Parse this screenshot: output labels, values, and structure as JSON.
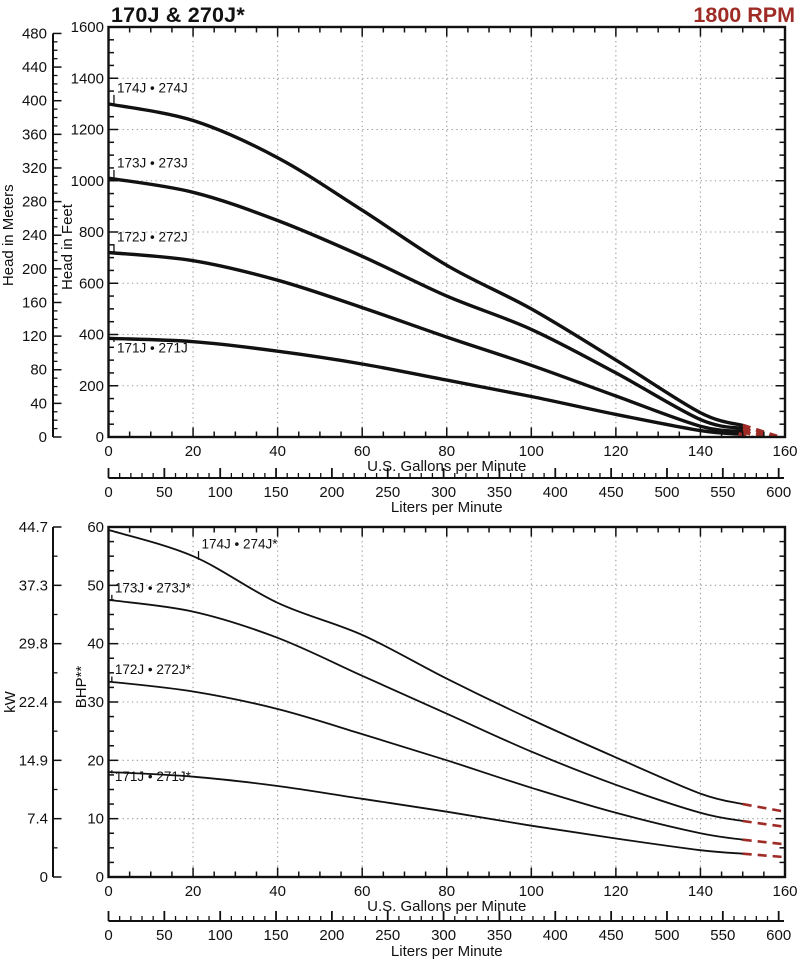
{
  "page": {
    "title": "170J & 270J*",
    "rpm": "1800 RPM"
  },
  "colors": {
    "accent_red": "#9E2B25",
    "curve": "#111111",
    "grid": "#999999",
    "text": "#111111"
  },
  "chart_data": [
    {
      "name": "head-capacity-chart",
      "type": "line",
      "x_axis": {
        "label": "U.S. Gallons per Minute",
        "min": 0,
        "max": 160,
        "major": 20,
        "minor": 5
      },
      "x_secondary": {
        "label": "Liters per Minute",
        "min": 0,
        "max": 600,
        "major": 50,
        "minor": 10,
        "primary_per_unit": 0.264172
      },
      "y_axis": {
        "label": "Head in Feet",
        "min": 0,
        "max": 1600,
        "major": 200,
        "minor": 50
      },
      "y_secondary": {
        "label": "Head in Meters",
        "min": 0,
        "max": 480,
        "major": 40,
        "minor": 10,
        "primary_per_unit": 3.28084
      },
      "grid": true,
      "series": [
        {
          "name": "174J • 274J",
          "label_at": [
            2,
            1345
          ],
          "points": [
            [
              0,
              1300
            ],
            [
              20,
              1235
            ],
            [
              40,
              1090
            ],
            [
              60,
              885
            ],
            [
              80,
              670
            ],
            [
              100,
              500
            ],
            [
              120,
              300
            ],
            [
              140,
              95
            ],
            [
              150,
              45
            ]
          ],
          "dashed_tail": [
            [
              150,
              45
            ],
            [
              158.5,
              0
            ]
          ]
        },
        {
          "name": "173J • 273J",
          "label_at": [
            2,
            1052
          ],
          "points": [
            [
              0,
              1010
            ],
            [
              20,
              955
            ],
            [
              40,
              845
            ],
            [
              60,
              705
            ],
            [
              80,
              550
            ],
            [
              100,
              420
            ],
            [
              120,
              250
            ],
            [
              140,
              68
            ],
            [
              150,
              33
            ]
          ],
          "dashed_tail": [
            [
              150,
              33
            ],
            [
              156.5,
              0
            ]
          ]
        },
        {
          "name": "172J • 272J",
          "label_at": [
            2,
            762
          ],
          "points": [
            [
              0,
              720
            ],
            [
              20,
              688
            ],
            [
              40,
              612
            ],
            [
              60,
              505
            ],
            [
              80,
              390
            ],
            [
              100,
              280
            ],
            [
              120,
              160
            ],
            [
              140,
              42
            ],
            [
              150,
              22
            ]
          ],
          "dashed_tail": [
            [
              150,
              22
            ],
            [
              154.2,
              0
            ]
          ]
        },
        {
          "name": "171J • 271J",
          "label_at": [
            2,
            330
          ],
          "points": [
            [
              0,
              385
            ],
            [
              20,
              372
            ],
            [
              40,
              335
            ],
            [
              60,
              285
            ],
            [
              80,
              222
            ],
            [
              100,
              158
            ],
            [
              120,
              88
            ],
            [
              140,
              25
            ],
            [
              149,
              12
            ]
          ],
          "dashed_tail": [
            [
              149,
              12
            ],
            [
              152.3,
              0
            ]
          ]
        }
      ]
    },
    {
      "name": "bhp-chart",
      "type": "line",
      "x_axis": {
        "label": "U.S. Gallons per Minute",
        "min": 0,
        "max": 160,
        "major": 20,
        "minor": 5
      },
      "x_secondary": {
        "label": "Liters per Minute",
        "min": 0,
        "max": 600,
        "major": 50,
        "minor": 10,
        "primary_per_unit": 0.264172
      },
      "y_axis": {
        "label": "BHP**",
        "min": 0,
        "max": 60,
        "major": 10,
        "minor": 2.5
      },
      "y_secondary": {
        "label": "kW",
        "tick_labels": [
          "0",
          "7.4",
          "14.9",
          "22.4",
          "29.8",
          "37.3",
          "44.7"
        ],
        "ticks_at_primary": [
          0,
          10,
          20,
          30,
          40,
          50,
          60
        ],
        "minors_at_primary": [
          5,
          15,
          25,
          35,
          45,
          55
        ]
      },
      "grid": true,
      "series": [
        {
          "name": "174J • 274J*",
          "label_at": [
            22,
            56.3
          ],
          "points": [
            [
              0,
              59.5
            ],
            [
              20,
              55
            ],
            [
              40,
              47
            ],
            [
              60,
              41.5
            ],
            [
              80,
              34
            ],
            [
              100,
              27
            ],
            [
              120,
              20.5
            ],
            [
              140,
              14.3
            ],
            [
              150,
              12.5
            ]
          ],
          "dashed_tail": [
            [
              150,
              12.5
            ],
            [
              160,
              11.2
            ]
          ]
        },
        {
          "name": "173J • 273J*",
          "label_at": [
            1.5,
            48.8
          ],
          "points": [
            [
              0,
              47.5
            ],
            [
              20,
              45.5
            ],
            [
              40,
              41
            ],
            [
              60,
              34.5
            ],
            [
              80,
              28
            ],
            [
              100,
              21.5
            ],
            [
              120,
              15.8
            ],
            [
              140,
              11
            ],
            [
              150,
              9.6
            ]
          ],
          "dashed_tail": [
            [
              150,
              9.6
            ],
            [
              160,
              8.6
            ]
          ]
        },
        {
          "name": "172J • 272J*",
          "label_at": [
            1.5,
            34.8
          ],
          "points": [
            [
              0,
              33.5
            ],
            [
              20,
              31.8
            ],
            [
              40,
              28.8
            ],
            [
              60,
              24.5
            ],
            [
              80,
              20
            ],
            [
              100,
              15.3
            ],
            [
              120,
              11
            ],
            [
              140,
              7.5
            ],
            [
              150,
              6.4
            ]
          ],
          "dashed_tail": [
            [
              150,
              6.4
            ],
            [
              160,
              5.6
            ]
          ]
        },
        {
          "name": "171J • 271J*",
          "label_at": [
            1.5,
            16.5
          ],
          "points": [
            [
              0,
              18
            ],
            [
              20,
              17.2
            ],
            [
              40,
              15.6
            ],
            [
              60,
              13.4
            ],
            [
              80,
              11.2
            ],
            [
              100,
              8.8
            ],
            [
              120,
              6.6
            ],
            [
              140,
              4.6
            ],
            [
              150,
              4.0
            ]
          ],
          "dashed_tail": [
            [
              150,
              4.0
            ],
            [
              160,
              3.4
            ]
          ]
        }
      ]
    }
  ]
}
